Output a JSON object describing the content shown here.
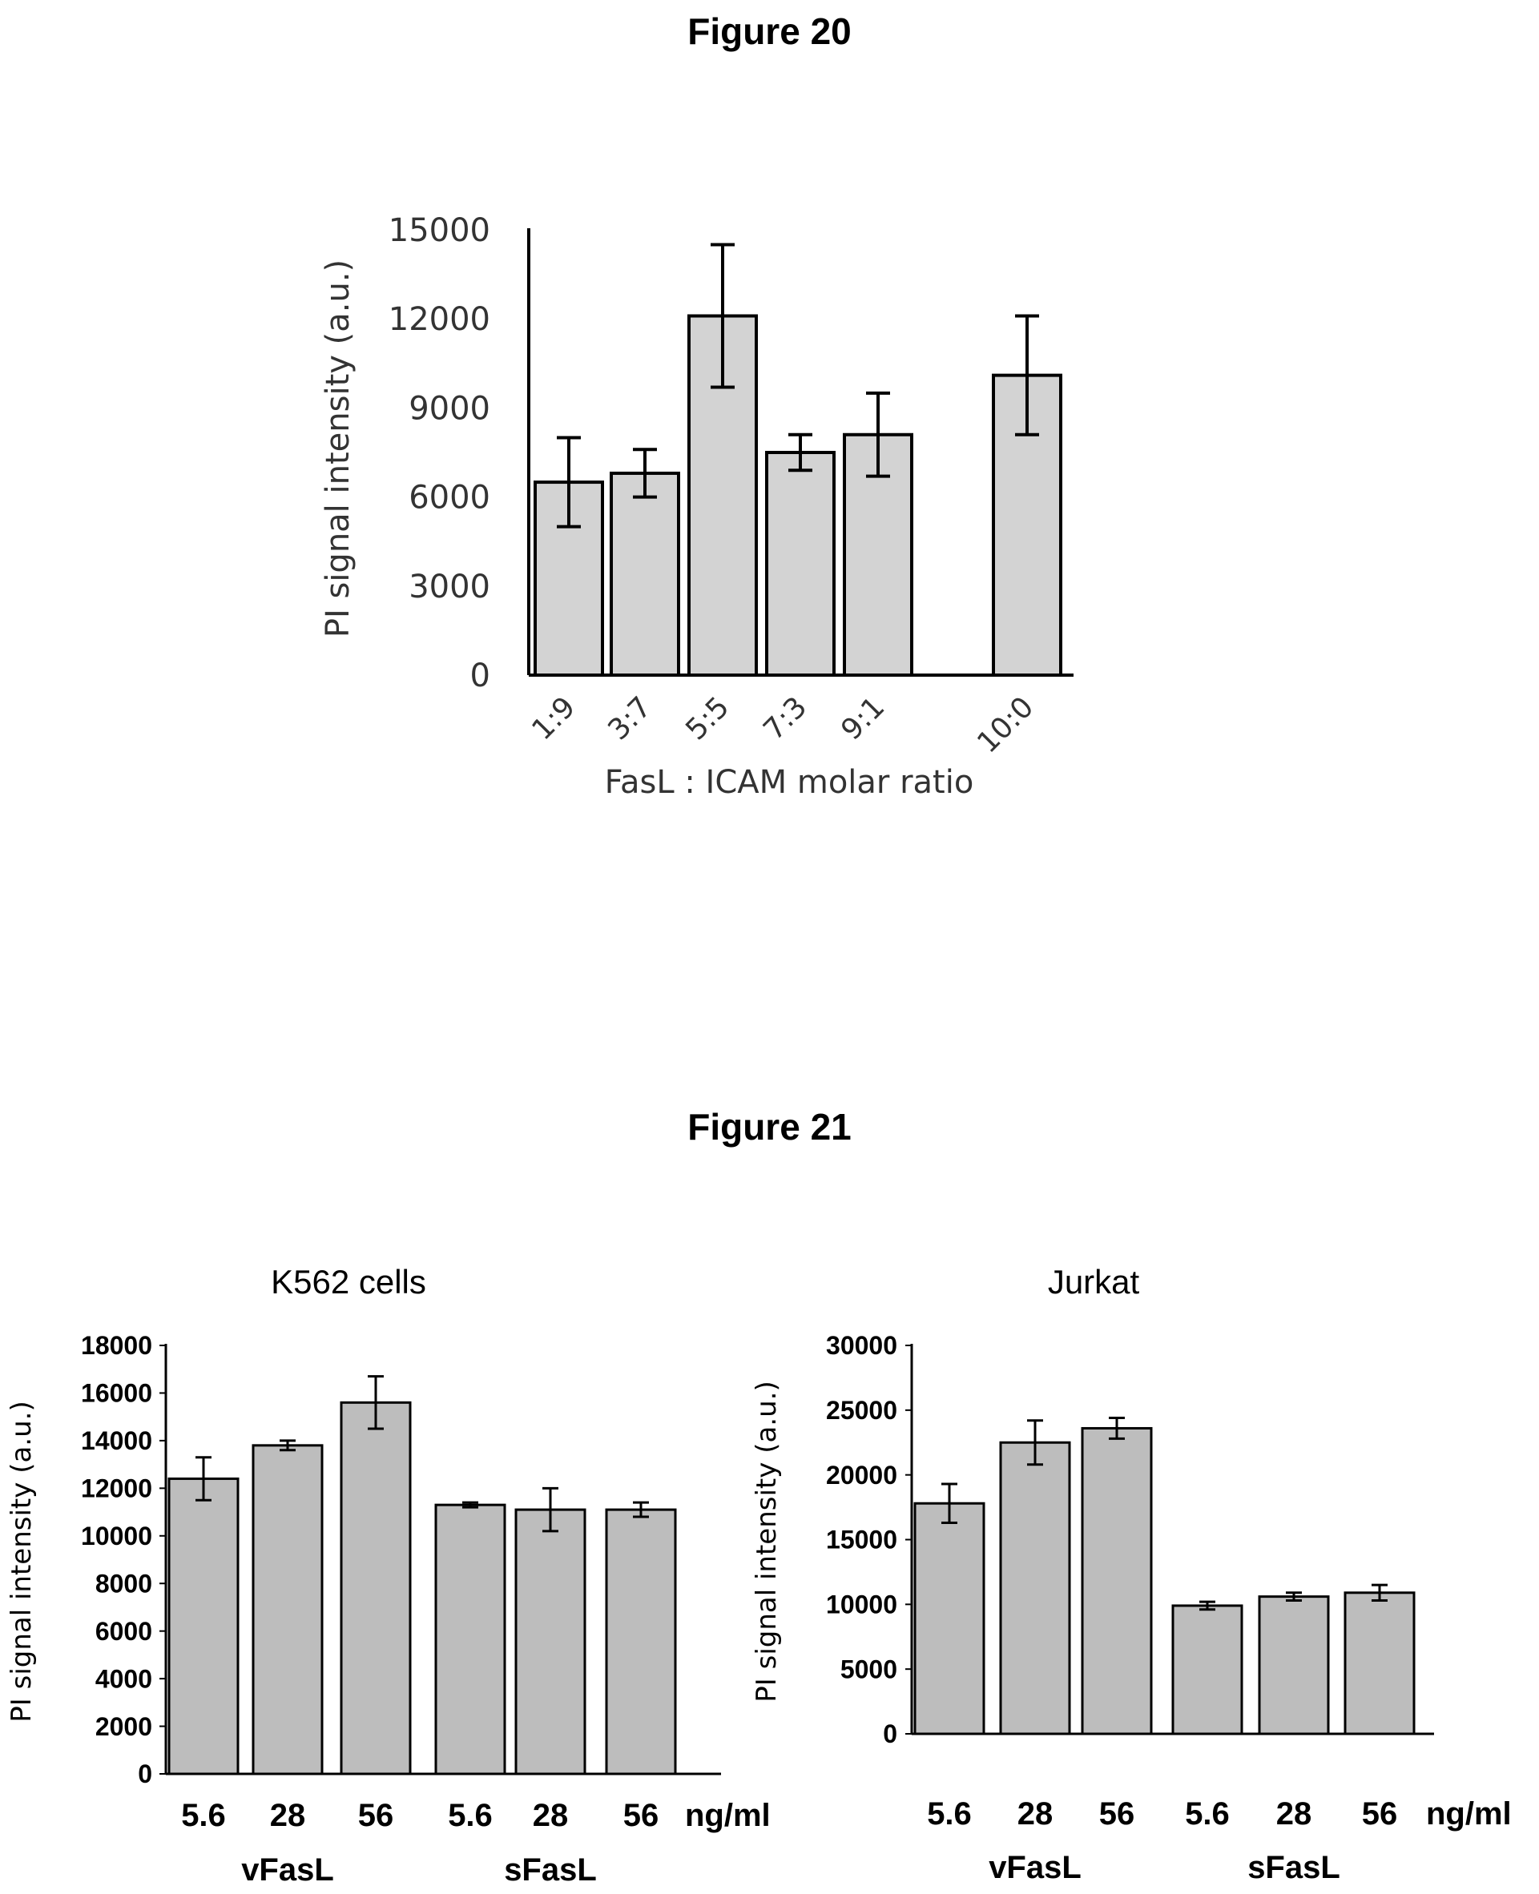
{
  "figure20": {
    "title": "Figure 20"
  },
  "figure21": {
    "title": "Figure 21"
  },
  "chart_data": [
    {
      "type": "bar",
      "title": "",
      "ylabel": "PI signal intensity (a.u.)",
      "xlabel": "FasL : ICAM molar ratio",
      "categories": [
        "1:9",
        "3:7",
        "5:5",
        "7:3",
        "9:1",
        "10:0"
      ],
      "values": [
        6500,
        6800,
        12100,
        7500,
        8100,
        10100
      ],
      "errors": [
        1500,
        800,
        2400,
        600,
        1400,
        2000
      ],
      "ylim": [
        0,
        15000
      ],
      "yticks": [
        0,
        3000,
        6000,
        9000,
        12000,
        15000
      ],
      "bar_color": "#d3d3d3"
    },
    {
      "type": "bar",
      "title": "K562 cells",
      "ylabel": "PI signal intensity (a.u.)",
      "categories": [
        "5.6",
        "28",
        "56",
        "5.6",
        "28",
        "56"
      ],
      "groups": [
        "vFasL",
        "sFasL"
      ],
      "unit": "ng/ml",
      "values": [
        12400,
        13800,
        15600,
        11300,
        11100,
        11100
      ],
      "errors": [
        900,
        200,
        1100,
        100,
        900,
        300
      ],
      "ylim": [
        0,
        18000
      ],
      "yticks": [
        0,
        2000,
        4000,
        6000,
        8000,
        10000,
        12000,
        14000,
        16000,
        18000
      ],
      "bar_color": "#bdbdbd"
    },
    {
      "type": "bar",
      "title": "Jurkat",
      "ylabel": "PI signal intensity (a.u.)",
      "categories": [
        "5.6",
        "28",
        "56",
        "5.6",
        "28",
        "56"
      ],
      "groups": [
        "vFasL",
        "sFasL"
      ],
      "unit": "ng/ml",
      "values": [
        17800,
        22500,
        23600,
        9900,
        10600,
        10900
      ],
      "errors": [
        1500,
        1700,
        800,
        300,
        300,
        600
      ],
      "ylim": [
        0,
        30000
      ],
      "yticks": [
        0,
        5000,
        10000,
        15000,
        20000,
        25000,
        30000
      ],
      "bar_color": "#bdbdbd"
    }
  ]
}
